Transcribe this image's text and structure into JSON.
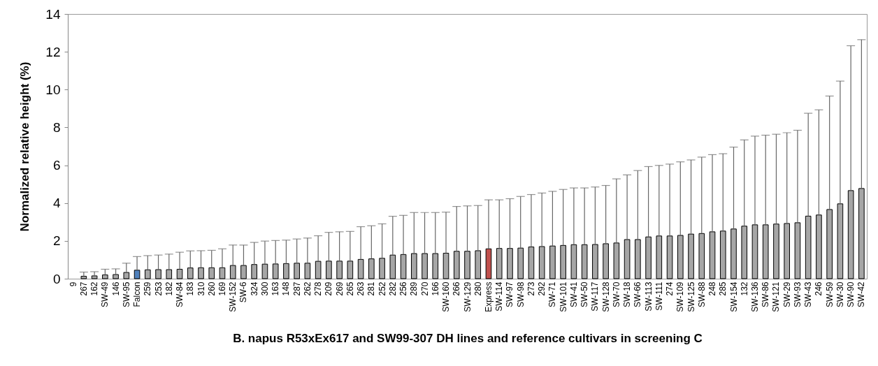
{
  "chart_data": {
    "type": "bar",
    "xlabel": "B. napus R53xEx617 and SW99-307 DH lines and reference cultivars in screening C",
    "ylabel": "Normalized relative height (%)",
    "categories": [
      "9",
      "267",
      "162",
      "SW-49",
      "146",
      "SW-95",
      "Falcon",
      "259",
      "253",
      "182",
      "SW-84",
      "183",
      "310",
      "260",
      "169",
      "SW-152",
      "SW-6",
      "324",
      "300",
      "163",
      "148",
      "287",
      "262",
      "278",
      "209",
      "269",
      "265",
      "263",
      "281",
      "252",
      "282",
      "256",
      "289",
      "270",
      "166",
      "SW-160",
      "266",
      "SW-129",
      "280",
      "Express",
      "SW-114",
      "SW-97",
      "SW-98",
      "273",
      "292",
      "SW-71",
      "SW-101",
      "SW-41",
      "SW-50",
      "SW-117",
      "SW-128",
      "SW-70",
      "SW-18",
      "SW-66",
      "SW-113",
      "SW-111",
      "274",
      "SW-109",
      "SW-125",
      "SW-88",
      "248",
      "285",
      "SW-154",
      "132",
      "SW-136",
      "SW-86",
      "SW-121",
      "SW-29",
      "SW-93",
      "SW-43",
      "246",
      "SW-59",
      "SW-30",
      "SW-90",
      "SW-42"
    ],
    "values": [
      0,
      0.13,
      0.15,
      0.2,
      0.22,
      0.33,
      0.45,
      0.47,
      0.48,
      0.48,
      0.5,
      0.57,
      0.58,
      0.58,
      0.58,
      0.7,
      0.7,
      0.75,
      0.77,
      0.78,
      0.8,
      0.82,
      0.82,
      0.92,
      0.93,
      0.93,
      0.93,
      1.02,
      1.05,
      1.08,
      1.25,
      1.28,
      1.33,
      1.33,
      1.33,
      1.35,
      1.45,
      1.45,
      1.48,
      1.58,
      1.6,
      1.6,
      1.62,
      1.68,
      1.7,
      1.73,
      1.76,
      1.8,
      1.8,
      1.81,
      1.85,
      1.89,
      2.07,
      2.07,
      2.21,
      2.26,
      2.26,
      2.29,
      2.36,
      2.39,
      2.48,
      2.52,
      2.63,
      2.78,
      2.85,
      2.85,
      2.89,
      2.92,
      2.96,
      3.31,
      3.37,
      3.66,
      3.96,
      4.66,
      4.77
    ],
    "errors": [
      null,
      [
        0.13,
        0.35
      ],
      [
        0.15,
        0.37
      ],
      [
        0.2,
        0.5
      ],
      [
        0.22,
        0.52
      ],
      [
        0.33,
        0.82
      ],
      [
        0.45,
        1.17
      ],
      [
        0.47,
        1.22
      ],
      [
        0.48,
        1.25
      ],
      [
        0.48,
        1.3
      ],
      [
        0.5,
        1.4
      ],
      [
        0.57,
        1.47
      ],
      [
        0.58,
        1.48
      ],
      [
        0.58,
        1.5
      ],
      [
        0.58,
        1.58
      ],
      [
        0.7,
        1.78
      ],
      [
        0.7,
        1.78
      ],
      [
        0.75,
        1.92
      ],
      [
        0.77,
        1.99
      ],
      [
        0.78,
        2.02
      ],
      [
        0.8,
        2.04
      ],
      [
        0.82,
        2.1
      ],
      [
        0.82,
        2.15
      ],
      [
        0.92,
        2.27
      ],
      [
        0.93,
        2.45
      ],
      [
        0.93,
        2.48
      ],
      [
        0.93,
        2.5
      ],
      [
        1.02,
        2.75
      ],
      [
        1.05,
        2.8
      ],
      [
        1.08,
        2.9
      ],
      [
        1.25,
        3.3
      ],
      [
        1.28,
        3.35
      ],
      [
        1.33,
        3.5
      ],
      [
        1.33,
        3.5
      ],
      [
        1.33,
        3.5
      ],
      [
        1.35,
        3.52
      ],
      [
        1.45,
        3.82
      ],
      [
        1.45,
        3.85
      ],
      [
        1.48,
        3.87
      ],
      [
        1.58,
        4.17
      ],
      [
        1.6,
        4.17
      ],
      [
        1.6,
        4.23
      ],
      [
        1.62,
        4.35
      ],
      [
        1.68,
        4.45
      ],
      [
        1.7,
        4.53
      ],
      [
        1.73,
        4.62
      ],
      [
        1.76,
        4.72
      ],
      [
        1.8,
        4.8
      ],
      [
        1.8,
        4.8
      ],
      [
        1.81,
        4.85
      ],
      [
        1.85,
        4.93
      ],
      [
        1.89,
        5.28
      ],
      [
        2.07,
        5.49
      ],
      [
        2.07,
        5.72
      ],
      [
        2.21,
        5.93
      ],
      [
        2.26,
        5.99
      ],
      [
        2.26,
        6.06
      ],
      [
        2.29,
        6.18
      ],
      [
        2.36,
        6.28
      ],
      [
        2.39,
        6.43
      ],
      [
        2.48,
        6.56
      ],
      [
        2.52,
        6.61
      ],
      [
        2.63,
        6.96
      ],
      [
        2.78,
        7.34
      ],
      [
        2.85,
        7.54
      ],
      [
        2.85,
        7.59
      ],
      [
        2.89,
        7.64
      ],
      [
        2.92,
        7.72
      ],
      [
        2.96,
        7.85
      ],
      [
        3.31,
        8.75
      ],
      [
        3.37,
        8.93
      ],
      [
        3.66,
        9.66
      ],
      [
        3.96,
        10.45
      ],
      [
        4.66,
        12.32
      ],
      [
        4.77,
        12.64
      ]
    ],
    "colors": [
      "#a6a6a6",
      "#a6a6a6",
      "#a6a6a6",
      "#a6a6a6",
      "#a6a6a6",
      "#a6a6a6",
      "#4f81bd",
      "#a6a6a6",
      "#a6a6a6",
      "#a6a6a6",
      "#a6a6a6",
      "#a6a6a6",
      "#a6a6a6",
      "#a6a6a6",
      "#a6a6a6",
      "#a6a6a6",
      "#a6a6a6",
      "#a6a6a6",
      "#a6a6a6",
      "#a6a6a6",
      "#a6a6a6",
      "#a6a6a6",
      "#a6a6a6",
      "#a6a6a6",
      "#a6a6a6",
      "#a6a6a6",
      "#a6a6a6",
      "#a6a6a6",
      "#a6a6a6",
      "#a6a6a6",
      "#a6a6a6",
      "#a6a6a6",
      "#a6a6a6",
      "#a6a6a6",
      "#a6a6a6",
      "#a6a6a6",
      "#a6a6a6",
      "#a6a6a6",
      "#a6a6a6",
      "#c0504d",
      "#a6a6a6",
      "#a6a6a6",
      "#a6a6a6",
      "#a6a6a6",
      "#a6a6a6",
      "#a6a6a6",
      "#a6a6a6",
      "#a6a6a6",
      "#a6a6a6",
      "#a6a6a6",
      "#a6a6a6",
      "#a6a6a6",
      "#a6a6a6",
      "#a6a6a6",
      "#a6a6a6",
      "#a6a6a6",
      "#a6a6a6",
      "#a6a6a6",
      "#a6a6a6",
      "#a6a6a6",
      "#a6a6a6",
      "#a6a6a6",
      "#a6a6a6",
      "#a6a6a6",
      "#a6a6a6",
      "#a6a6a6",
      "#a6a6a6",
      "#a6a6a6",
      "#a6a6a6",
      "#a6a6a6",
      "#a6a6a6",
      "#a6a6a6",
      "#a6a6a6",
      "#a6a6a6",
      "#a6a6a6"
    ],
    "ylim": [
      0,
      14
    ],
    "yticks": [
      0,
      2,
      4,
      6,
      8,
      10,
      12,
      14
    ],
    "grid": false
  }
}
